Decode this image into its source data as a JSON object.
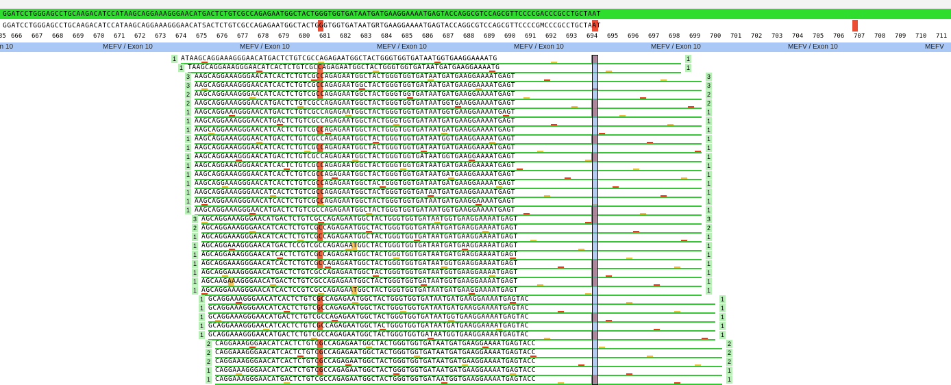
{
  "reference": {
    "consensus_line": "GGATCCTGGGAGCCTGCAAGACATCCATAAGCAGGAAAGGGAACATGACTCTGTCGCCAGAGAATGGCTACTGGGTGGTGATAATGATGAAGGAAAATGAGTACCAGGCGTCCAGCGTTCCCCGACCCGCCTGCTAAT",
    "variant_line": "GGATCCTGGGAGCCTGCAAGACATCCATAAGCAGGAAAGGGAACATSACTCTGTCGCCAGAGAATGGCTACTGGGTGGTGATAATGRTGAAGGAAAATGAGTACCAGGCGTCCAGCGTTCCCCGMCCCGCCTGCTAAT"
  },
  "ruler": {
    "labels": [
      "35",
      "666",
      "667",
      "668",
      "669",
      "670",
      "671",
      "672",
      "673",
      "674",
      "675",
      "676",
      "677",
      "678",
      "679",
      "680",
      "681",
      "682",
      "683",
      "684",
      "685",
      "686",
      "687",
      "688",
      "689",
      "690",
      "691",
      "692",
      "693",
      "694",
      "695",
      "696",
      "697",
      "698",
      "699",
      "700",
      "701",
      "702",
      "703",
      "704",
      "705",
      "706",
      "707",
      "708",
      "709",
      "710",
      "711"
    ]
  },
  "exon_track": {
    "labels": [
      "on 10",
      "MEFV / Exon 10",
      "MEFV / Exon 10",
      "MEFV / Exon 10",
      "MEFV / Exon 10",
      "MEFV / Exon 10",
      "MEFV / Exon 10",
      "MEFV"
    ]
  },
  "reads": [
    {
      "l": "1",
      "r": "1",
      "seq": "ATAAGCAGGAAAGGGAACATGACTCTGTCGCCAGAGAATGGCTACTGGGTGGTGATAATGGTGAAGGAAAATG"
    },
    {
      "l": "1",
      "r": "1",
      "seq": "TAAGCAGGAAAGGGAACATCACTCTGTCGCCAGAGAATGGCTACTGGGTGGTGATAATGATGAAGGAAAATG"
    },
    {
      "l": "3",
      "r": "3",
      "seq": "AAGCAGGAAAGGGAACATCACTCTGTCGCCAGAGAATGGCTACTGGGTGGTGATAATGATGAAGGAAAATGAGT"
    },
    {
      "l": "3",
      "r": "3",
      "seq": "AAGCAGGAAAGGGAACATCACTCTGTCGCCAGAGAATGGCTACTGGGTGGTGATAATGATGAAGGAAAATGAGT"
    },
    {
      "l": "2",
      "r": "2",
      "seq": "AAGCAGGAAAGGGAACATCACTCTGTCGCCAGAGAATGGCTACTGGGTGGTGATAATGATGAAGGAAAATGAGT"
    },
    {
      "l": "2",
      "r": "2",
      "seq": "AAGCAGGAAAGGGAACATGACTCTGTCGCCAGAGAATGGCTACTGGGTGGTGATAATGGTGAAGGAAAATGAGT"
    },
    {
      "l": "1",
      "r": "1",
      "seq": "AAGCAGGAAAGGGAACATGACTCTGTCGCCAGAGAATGGCTACTGGGTGGTGATAATGGTGAAGGAAAATGAGT"
    },
    {
      "l": "1",
      "r": "1",
      "seq": "AAGCAGGAAAGGGAACATGACTCTGTCGCCAGAGAATGGCTACTGGGTGGTGATAATGATGAAGGAAAATGAGT"
    },
    {
      "l": "1",
      "r": "1",
      "seq": "AAGCAGGAAAGGGAACATCACTCTGTCGCCAGAGAATGGCTACTGGGTGGTGATAATGATGAAGGAAAATGAGT"
    },
    {
      "l": "1",
      "r": "1",
      "seq": "AAGCAGGAAAGGGAACATGACTCTGTCGCCAGAGAATGGCTACTGGGTGGTGATAATGGTGAAGGAAAATGAGT"
    },
    {
      "l": "1",
      "r": "1",
      "seq": "AAGCAGGAAAGGGAACATCACTCTGTCGCCAGAGAATGGCTACTGGGTGGTGATAATGATGAAGGAAAATGAGT"
    },
    {
      "l": "1",
      "r": "1",
      "seq": "AAGCAGGAAAGGGAACATGACTCTGTCGCCAGAGAATGGCTACTGGGTGGTGATAATGGTGAAGGAAAATGAGT"
    },
    {
      "l": "1",
      "r": "1",
      "seq": "AAGCAGGAAAGGGAACATCACTCTGTCGCCAGAGAATGGCTACTGGGTGGTGATAATGATGAAGGAAAATGAGT"
    },
    {
      "l": "1",
      "r": "1",
      "seq": "AAGCAGGAAAGGGAACATCACTCTGTCGCCAGAGAATGGCTACTGGGTGGTGATAATGATGAAGGAAAATGAGT"
    },
    {
      "l": "1",
      "r": "1",
      "seq": "AAGCAGGAAAGGGAACATCACTCTGTCGCCAGAGAATGGCTACTGGGTGGTGATAATGATGAAGGAAAATGAGT"
    },
    {
      "l": "1",
      "r": "1",
      "seq": "AAGCAGGAAAGGGAACATCACTCTGTCGCCAGAGAATGGCTACTGGGTGGTGATAATGATGAAGGAAAATGAGT"
    },
    {
      "l": "1",
      "r": "1",
      "seq": "AAGCAGGAAAGGGAACATCACTCTGTCGCCAGAGAATGGCTACTGGGTGGTGATAATGATGAAGGAAAATGAGT"
    },
    {
      "l": "1",
      "r": "1",
      "seq": "AAGCAGGAAAGGGAACATGACTCTGTCGCCAGAGAATGGCTACTGGGTGGTGATAATGGTGAAGGAAAATGAGT"
    },
    {
      "l": "3",
      "r": "3",
      "seq": "AGCAGGAAAGGGAACATGACTCTGTCGCCAGAGAATGGCTACTGGGTGGTGATAATGGTGAAGGAAAATGAGT"
    },
    {
      "l": "2",
      "r": "2",
      "seq": "AGCAGGAAAGGGAACATCACTCTGTCGCCAGAGAATGGCTACTGGGTGGTGATAATGATGAAGGAAAATGAGT"
    },
    {
      "l": "1",
      "r": "1",
      "seq": "AGCAGGAAAGGGAACATCACTCTGTCGCCAGAGAATGGCTACTGGGTGGTGATAATGATGAAGGAAAATGAGT"
    },
    {
      "l": "1",
      "r": "1",
      "seq": "AGCAGGAAAGGGAACATGACTCCGTCGCCAGAGAATGGCTACTGGGTGGTGATAATGATGAAGGAAAATGAGT"
    },
    {
      "l": "1",
      "r": "1",
      "seq": "AGCAGGAAAGGGAACATCACTCTGTCGCCAGAGAATGGCTACTGGGTGGTGATAATGATGAAGGAAAATGAGT"
    },
    {
      "l": "1",
      "r": "1",
      "seq": "AGCAGGAAAGGGAACATCACTCTGTCGCCAGAGAATGGCTACTGGGTGGTGATAATGGTGAAGGAAAATGAGT"
    },
    {
      "l": "1",
      "r": "1",
      "seq": "AGCAGGAAAGGGAACATGACTCTGTCGCCAGAGAATGGCTACTGGGTGGTGATAATGGTGAAGGAAAATGAGT"
    },
    {
      "l": "1",
      "r": "1",
      "seq": "AGCAAGAAAGGGAACATGACTCTGTCGCCAGAGAATGGCTACTGGGTGGTGATAATGGTGAAGGAAAATGAGT"
    },
    {
      "l": "1",
      "r": "1",
      "seq": "AGCAGGAAAGGGAACATCACTCCGTCGCCAGAGAATGGCTACTGGGTGGTGATAATGATGAAGGAAAATGAGT"
    },
    {
      "l": "1",
      "r": "1",
      "seq": "GCAGGAAAGGGAACATCACTCTGTCGCCAGAGAATGGCTACTGGGTGGTGATAATGATGAAGGAAAATGAGTAC"
    },
    {
      "l": "1",
      "r": "1",
      "seq": "GCAGGAAAGGGAACATCACTCTGTCGCCAGAGAATGGCTACTGGGTGGTGATAATGATGAAGGAAAATGAGTAC"
    },
    {
      "l": "1",
      "r": "1",
      "seq": "GCAGGAAAGGGAACATGACTCTGTCGCCAGAGAATGGCTACTGGGTGGTGATAATGGTGAAGGAAAATGAGTAC"
    },
    {
      "l": "1",
      "r": "1",
      "seq": "GCAGGAAAGGGAACATCACTCTGTCGCCAGAGAATGGCTACTGGGTGGTGATAATGATGAAGGAAAATGAGTAC"
    },
    {
      "l": "1",
      "r": "1",
      "seq": "GCAGGAAAGGGAACATGACTCTGTCGCCAGAGAATGGCTACTGGGTGGTGATAATGGTGAAGGAAAATGAGTAC"
    },
    {
      "l": "2",
      "r": "2",
      "seq": "CAGGAAAGGGAACATCACTCTGTCGCCAGAGAATGGCTACTGGGTGGTGATAATGATGAAGGAAAATGAGTACC"
    },
    {
      "l": "2",
      "r": "2",
      "seq": "CAGGAAAGGGAACATCACTCTGTCGCCAGAGAATGGCTACTGGGTGGTGATAATGATGAAGGAAAATGAGTACC"
    },
    {
      "l": "2",
      "r": "2",
      "seq": "CAGGAAAGGGAACATCACTCTGTCGCCAGAGAATGGCTACTGGGTGGTGATAATGATGAAGGAAAATGAGTACC"
    },
    {
      "l": "1",
      "r": "1",
      "seq": "CAGGAAAGGGAACATCACTCTGTCGCCAGAGAATGGCTACTGGGTGGTGATAATGATGAAGGAAAATGAGTACC"
    },
    {
      "l": "1",
      "r": "1",
      "seq": "CAGGAAAGGGAACATGACTCTGTCGCCAGAGAATGGCTACTGGGTGGTGATAATGGTGAAGGAAAATGAGTACC"
    }
  ],
  "colors": {
    "reference_bar": "#2edd2e",
    "exon_bar": "#a9c8f5",
    "count_bg": "#b8f0b8",
    "variant_red": "#e8391e",
    "variant_orange": "#f5b942",
    "read_underline": "#35c535"
  }
}
